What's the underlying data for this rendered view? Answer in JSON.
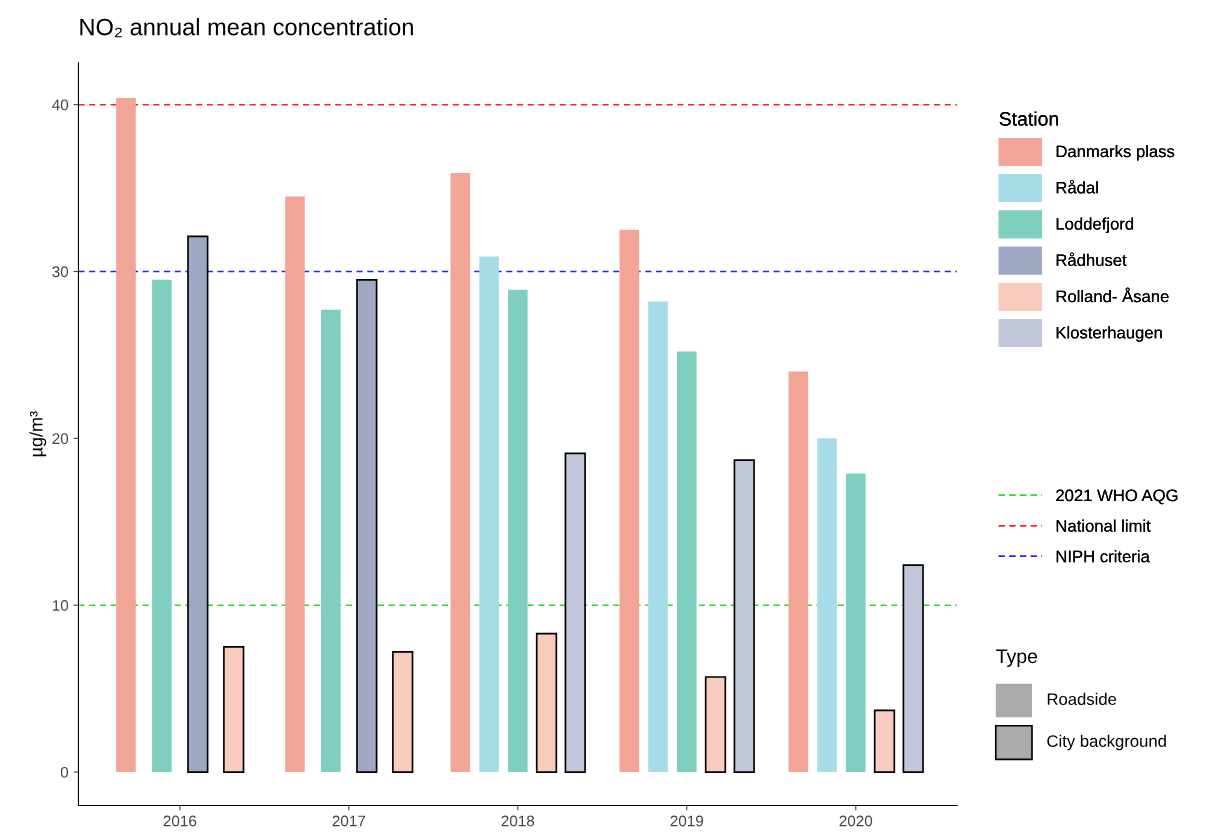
{
  "chart_data": {
    "type": "bar",
    "title": "NO₂ annual mean concentration",
    "ylabel": "µg/m³",
    "legend_title": "Station",
    "categories": [
      "2016",
      "2017",
      "2018",
      "2019",
      "2020"
    ],
    "series": [
      {
        "name": "Danmarks plass",
        "color": "#f2a597",
        "values": [
          40.4,
          34.5,
          35.9,
          32.5,
          24.0
        ]
      },
      {
        "name": "Rådal",
        "color": "#a6dce8",
        "values": [
          null,
          null,
          30.9,
          28.2,
          20.0
        ]
      },
      {
        "name": "Loddefjord",
        "color": "#7ecfc0",
        "values": [
          29.5,
          27.7,
          28.9,
          25.2,
          17.9
        ]
      },
      {
        "name": "Rådhuset",
        "color": "#9ea8c2",
        "line_style": "solid",
        "values": [
          32.1,
          29.5,
          null,
          null,
          null
        ]
      },
      {
        "name": "Rolland- Åsane",
        "color": "#f8cbbd",
        "line_style": "solid",
        "values": [
          7.5,
          7.2,
          8.3,
          5.7,
          3.7
        ]
      },
      {
        "name": "Klosterhaugen",
        "color": "#c1c7d8",
        "line_style": "solid",
        "values": [
          null,
          null,
          19.1,
          18.7,
          12.4
        ]
      }
    ],
    "annotations": [
      "Type",
      "Roadside",
      "City background"
    ],
    "ref_lines": [
      {
        "axis": "y",
        "value": 10,
        "label": "2021 WHO AQG",
        "color": "#22dd22",
        "line_style": "dashed"
      },
      {
        "axis": "y",
        "value": 40,
        "label": "National limit",
        "color": "#ff2222",
        "line_style": "dashed"
      },
      {
        "axis": "y",
        "value": 30,
        "label": "NIPH criteria",
        "color": "#2222ff",
        "line_style": "dashed"
      }
    ],
    "ylim": [
      -2,
      42.5
    ],
    "yticks": [
      0,
      10,
      20,
      30,
      40
    ],
    "grid": false,
    "legend": "right"
  }
}
